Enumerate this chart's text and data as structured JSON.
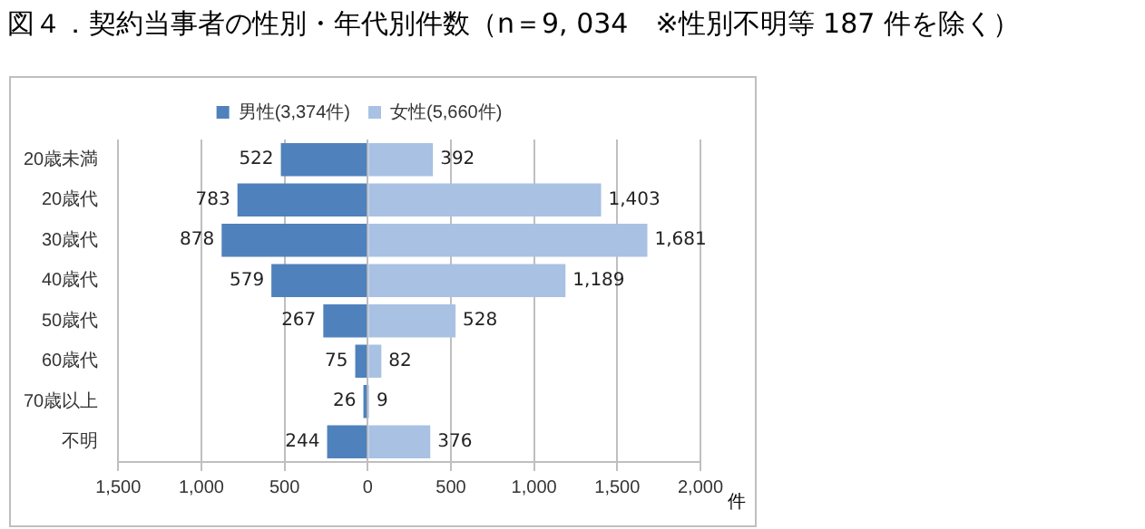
{
  "chart_data": {
    "type": "bar",
    "orientation": "horizontal",
    "title": "図４．契約当事者の性別・年代別件数（n＝9, 034　※性別不明等 187 件を除く）",
    "xlabel": "件",
    "categories": [
      "20歳未満",
      "20歳代",
      "30歳代",
      "40歳代",
      "50歳代",
      "60歳代",
      "70歳以上",
      "不明"
    ],
    "series": [
      {
        "name": "男性(3,374件)",
        "color": "#4f81bd",
        "values": [
          522,
          783,
          878,
          579,
          267,
          75,
          26,
          244
        ],
        "base": [
          -522,
          -783,
          -878,
          -579,
          -267,
          -75,
          -26,
          -244
        ],
        "value_labels": [
          "522",
          "783",
          "878",
          "579",
          "267",
          "75",
          "26",
          "244"
        ]
      },
      {
        "name": "女性(5,660件)",
        "color": "#a9c1e3",
        "values": [
          392,
          1403,
          1681,
          1189,
          528,
          82,
          9,
          376
        ],
        "base": [
          0,
          0,
          0,
          0,
          0,
          0,
          0,
          0
        ],
        "value_labels": [
          "392",
          "1,403",
          "1,681",
          "1,189",
          "528",
          "82",
          "9",
          "376"
        ]
      }
    ],
    "xlim": [
      -1500,
      2000
    ],
    "xticks": [
      {
        "value": -1500,
        "label": "1,500"
      },
      {
        "value": -1000,
        "label": "1,000"
      },
      {
        "value": -500,
        "label": "500"
      },
      0,
      {
        "value": 500,
        "label": "500"
      },
      {
        "value": 1000,
        "label": "1,000"
      },
      {
        "value": 1500,
        "label": "1,500"
      },
      {
        "value": 2000,
        "label": "2,000"
      }
    ],
    "grid": "x",
    "legend": "top"
  }
}
